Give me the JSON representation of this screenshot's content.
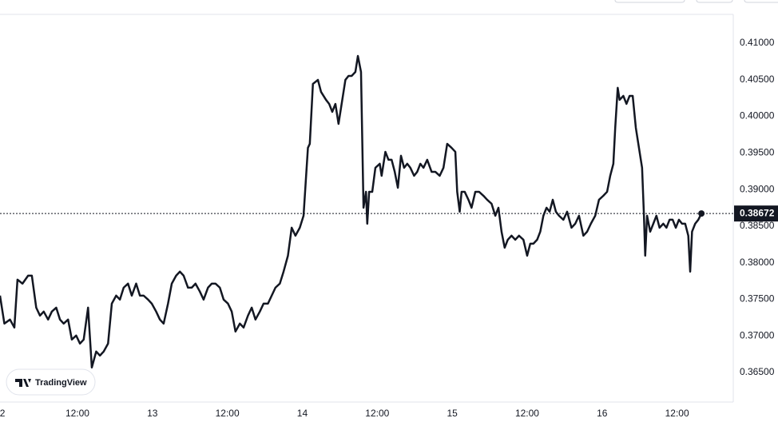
{
  "chart_data": {
    "type": "line",
    "color": "#131722",
    "grid": false,
    "watermark": "TradingView",
    "last_value": {
      "value": 0.38672,
      "label": "0.38672"
    },
    "xlim": [
      -0.4,
      117.0
    ],
    "xticks": [
      {
        "value": 0,
        "label": "2"
      },
      {
        "value": 12,
        "label": "12:00"
      },
      {
        "value": 24,
        "label": "13"
      },
      {
        "value": 36,
        "label": "12:00"
      },
      {
        "value": 48,
        "label": "14"
      },
      {
        "value": 60,
        "label": "12:00"
      },
      {
        "value": 72,
        "label": "15"
      },
      {
        "value": 84,
        "label": "12:00"
      },
      {
        "value": 96,
        "label": "16"
      },
      {
        "value": 108,
        "label": "12:00"
      }
    ],
    "ylim": [
      0.36096,
      0.41393
    ],
    "yticks": [
      {
        "value": 0.365,
        "label": "0.36500"
      },
      {
        "value": 0.37,
        "label": "0.37000"
      },
      {
        "value": 0.375,
        "label": "0.37500"
      },
      {
        "value": 0.38,
        "label": "0.38000"
      },
      {
        "value": 0.385,
        "label": "0.38500"
      },
      {
        "value": 0.39,
        "label": "0.39000"
      },
      {
        "value": 0.395,
        "label": "0.39500"
      },
      {
        "value": 0.4,
        "label": "0.40000"
      },
      {
        "value": 0.405,
        "label": "0.40500"
      },
      {
        "value": 0.41,
        "label": "0.41000"
      }
    ],
    "x": [
      -0.4,
      0.3,
      1.2,
      1.9,
      2.4,
      3.2,
      4.1,
      4.7,
      5.4,
      6.0,
      6.6,
      7.3,
      7.9,
      8.6,
      9.2,
      9.8,
      10.5,
      11.1,
      11.8,
      12.4,
      13.0,
      13.7,
      14.3,
      15.0,
      15.6,
      16.2,
      16.9,
      17.5,
      18.2,
      18.8,
      19.4,
      20.1,
      20.7,
      21.4,
      22.0,
      22.6,
      23.3,
      23.9,
      24.6,
      25.2,
      25.8,
      26.5,
      27.1,
      27.8,
      28.4,
      29.0,
      29.7,
      30.3,
      30.9,
      31.6,
      32.2,
      32.9,
      33.5,
      34.1,
      34.8,
      35.4,
      36.1,
      36.7,
      37.3,
      38.0,
      38.6,
      39.3,
      39.9,
      40.5,
      41.2,
      41.8,
      42.5,
      43.1,
      43.7,
      44.4,
      45.0,
      45.7,
      46.3,
      46.9,
      47.6,
      48.2,
      48.9,
      49.2,
      49.7,
      50.5,
      51.0,
      51.8,
      52.3,
      52.8,
      53.3,
      53.8,
      54.3,
      54.9,
      55.4,
      55.9,
      56.5,
      56.9,
      57.4,
      57.8,
      58.2,
      58.4,
      58.7,
      59.2,
      59.7,
      60.4,
      60.7,
      61.3,
      61.8,
      62.3,
      62.8,
      63.3,
      63.8,
      64.3,
      64.8,
      65.3,
      65.9,
      66.4,
      66.9,
      67.4,
      68.0,
      68.7,
      69.3,
      70.0,
      70.6,
      71.2,
      71.9,
      72.5,
      72.8,
      73.2,
      73.5,
      74.0,
      74.6,
      75.1,
      75.7,
      76.3,
      77.0,
      77.6,
      78.3,
      78.9,
      79.4,
      79.9,
      80.4,
      80.9,
      81.5,
      82.1,
      82.7,
      83.4,
      84.0,
      84.5,
      85.0,
      85.6,
      86.1,
      86.6,
      87.1,
      87.6,
      88.1,
      88.6,
      89.1,
      89.8,
      90.4,
      91.1,
      91.7,
      92.3,
      93.0,
      93.6,
      94.2,
      94.9,
      95.5,
      96.2,
      96.8,
      97.3,
      97.8,
      98.1,
      98.5,
      98.8,
      99.4,
      99.9,
      100.4,
      100.9,
      101.4,
      101.9,
      102.4,
      102.7,
      102.9,
      103.2,
      103.7,
      104.2,
      104.7,
      105.2,
      105.8,
      106.3,
      106.8,
      107.3,
      107.8,
      108.3,
      108.8,
      109.3,
      109.8,
      110.1,
      110.4,
      110.9,
      111.4,
      111.9
    ],
    "values": [
      0.3755,
      0.37168,
      0.37223,
      0.37114,
      0.37769,
      0.37714,
      0.37823,
      0.37823,
      0.37386,
      0.37277,
      0.37332,
      0.37223,
      0.37332,
      0.37386,
      0.37223,
      0.37168,
      0.37223,
      0.3695,
      0.37004,
      0.36895,
      0.3695,
      0.37386,
      0.36568,
      0.36786,
      0.36731,
      0.36786,
      0.36895,
      0.37441,
      0.3755,
      0.37496,
      0.37659,
      0.37714,
      0.3755,
      0.37714,
      0.3755,
      0.3755,
      0.37496,
      0.37441,
      0.37332,
      0.37223,
      0.37168,
      0.37441,
      0.37714,
      0.37823,
      0.37878,
      0.37823,
      0.37659,
      0.37659,
      0.37714,
      0.37605,
      0.37496,
      0.37659,
      0.37714,
      0.37714,
      0.37659,
      0.37496,
      0.37441,
      0.37332,
      0.37059,
      0.37168,
      0.37114,
      0.37277,
      0.37386,
      0.37223,
      0.37332,
      0.37441,
      0.37441,
      0.3755,
      0.37659,
      0.37714,
      0.37878,
      0.38096,
      0.38478,
      0.38369,
      0.38478,
      0.38642,
      0.3957,
      0.39624,
      0.40443,
      0.40498,
      0.40334,
      0.40225,
      0.4017,
      0.40061,
      0.4017,
      0.39897,
      0.4017,
      0.40498,
      0.40552,
      0.40552,
      0.40607,
      0.40825,
      0.40607,
      0.38751,
      0.38969,
      0.38533,
      0.38969,
      0.38969,
      0.39297,
      0.39352,
      0.39188,
      0.39515,
      0.39406,
      0.39406,
      0.39242,
      0.39024,
      0.39461,
      0.39297,
      0.39352,
      0.39297,
      0.39188,
      0.39242,
      0.39352,
      0.39297,
      0.39406,
      0.39242,
      0.39242,
      0.39188,
      0.39297,
      0.39624,
      0.3957,
      0.39515,
      0.38969,
      0.38697,
      0.38969,
      0.38969,
      0.3886,
      0.38751,
      0.38969,
      0.38969,
      0.38915,
      0.3886,
      0.38806,
      0.38642,
      0.38751,
      0.38424,
      0.38205,
      0.38314,
      0.38369,
      0.38314,
      0.38369,
      0.38314,
      0.38096,
      0.3826,
      0.3826,
      0.38314,
      0.38424,
      0.38642,
      0.38751,
      0.38697,
      0.3886,
      0.38697,
      0.38642,
      0.38587,
      0.38697,
      0.38478,
      0.38533,
      0.38642,
      0.38369,
      0.38424,
      0.38533,
      0.38642,
      0.3886,
      0.38915,
      0.38969,
      0.39188,
      0.39352,
      0.39843,
      0.40389,
      0.40225,
      0.40279,
      0.4017,
      0.40279,
      0.40279,
      0.39843,
      0.3957,
      0.39297,
      0.38642,
      0.38096,
      0.38642,
      0.38424,
      0.38533,
      0.38642,
      0.38478,
      0.38533,
      0.38478,
      0.38587,
      0.38587,
      0.38478,
      0.38587,
      0.38533,
      0.38533,
      0.38369,
      0.37878,
      0.38424,
      0.38533,
      0.38587,
      0.38672
    ]
  }
}
